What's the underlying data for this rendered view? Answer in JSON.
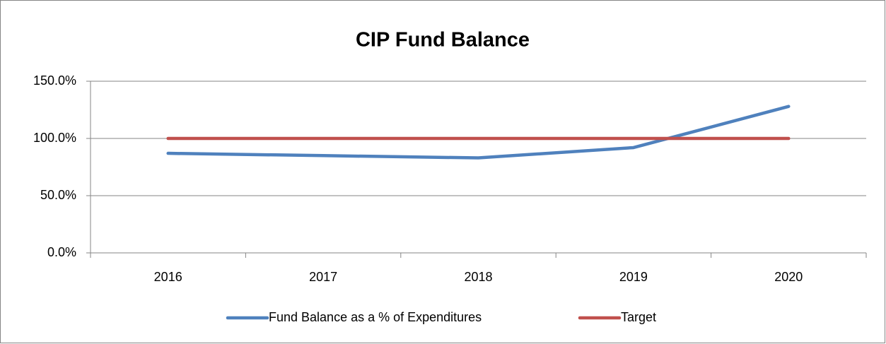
{
  "chart_data": {
    "type": "line",
    "title": "CIP Fund Balance",
    "categories": [
      "2016",
      "2017",
      "2018",
      "2019",
      "2020"
    ],
    "series": [
      {
        "name": "Fund Balance as a % of Expenditures",
        "color": "#4f81bd",
        "values": [
          87,
          85,
          83,
          92,
          128
        ]
      },
      {
        "name": "Target",
        "color": "#c0504d",
        "values": [
          100,
          100,
          100,
          100,
          100
        ]
      }
    ],
    "ylim": [
      0,
      150
    ],
    "yticks": [
      {
        "value": 0,
        "label": "0.0%"
      },
      {
        "value": 50,
        "label": "50.0%"
      },
      {
        "value": 100,
        "label": "100.0%"
      },
      {
        "value": 150,
        "label": "150.0%"
      }
    ],
    "grid": true,
    "legend": "bottom"
  }
}
